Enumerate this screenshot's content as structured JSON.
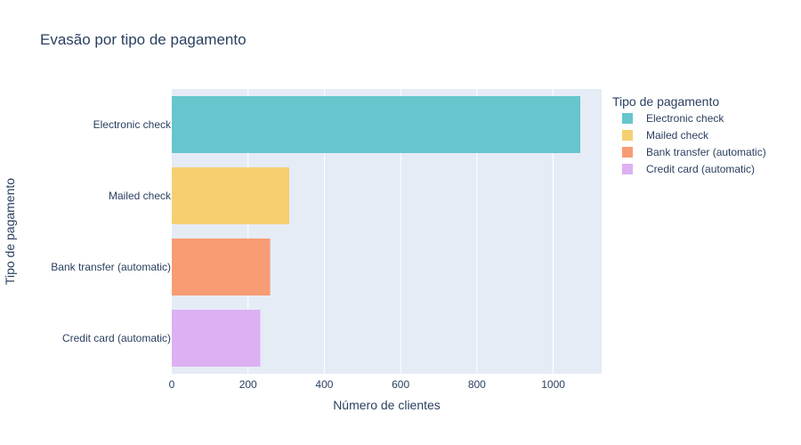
{
  "chart_data": {
    "type": "bar",
    "orientation": "horizontal",
    "title": "Evasão por tipo de pagamento",
    "xlabel": "Número de clientes",
    "ylabel": "Tipo de pagamento",
    "categories": [
      "Electronic check",
      "Mailed check",
      "Bank transfer (automatic)",
      "Credit card (automatic)"
    ],
    "values": [
      1071,
      308,
      258,
      232
    ],
    "colors": [
      "#67c5cd",
      "#f6cf71",
      "#f89c74",
      "#dcb0f2"
    ],
    "xlim": [
      0,
      1127
    ],
    "xticks": [
      0,
      200,
      400,
      600,
      800,
      1000
    ],
    "grid": true,
    "legend": {
      "title": "Tipo de pagamento",
      "position": "top-right",
      "entries": [
        "Electronic check",
        "Mailed check",
        "Bank transfer (automatic)",
        "Credit card (automatic)"
      ]
    }
  }
}
